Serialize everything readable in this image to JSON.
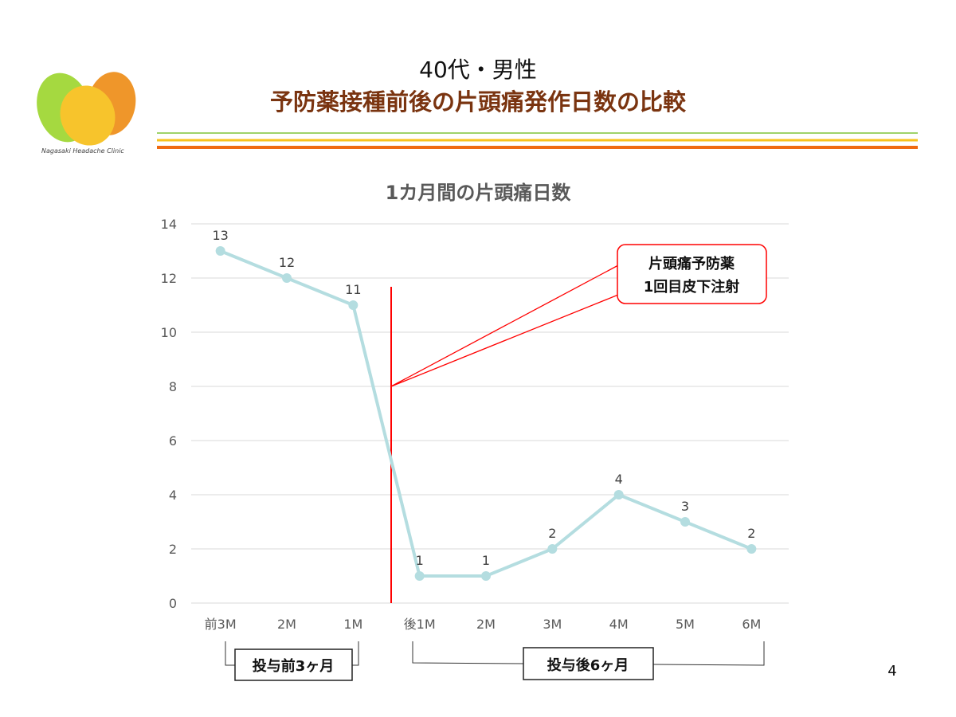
{
  "header": {
    "subtitle": "40代・男性",
    "title": "予防薬接種前後の片頭痛発作日数の比較",
    "logo_text": "Nagasaki Headache Clinic"
  },
  "colors": {
    "line": "#b4dde0",
    "marker": "#b4dde0",
    "annotation": "#ff0000",
    "title": "#7a3410",
    "rule_green": "#9fd36a",
    "rule_yellow": "#f7c21c",
    "rule_orange": "#f06a10"
  },
  "chart_data": {
    "type": "line",
    "title": "1カ月間の片頭痛日数",
    "categories": [
      "前3M",
      "2M",
      "1M",
      "後1M",
      "2M",
      "3M",
      "4M",
      "5M",
      "6M"
    ],
    "series": [
      {
        "values": [
          13,
          12,
          11,
          1,
          1,
          2,
          4,
          3,
          2
        ]
      }
    ],
    "ylim": [
      0,
      14
    ],
    "yticks": [
      0,
      2,
      4,
      6,
      8,
      10,
      12,
      14
    ],
    "grid": true,
    "annotation": {
      "line1": "片頭痛予防薬",
      "line2": "1回目皮下注射"
    },
    "groups": [
      {
        "label": "投与前3ヶ月"
      },
      {
        "label": "投与後6ヶ月"
      }
    ]
  },
  "page_number": "4"
}
